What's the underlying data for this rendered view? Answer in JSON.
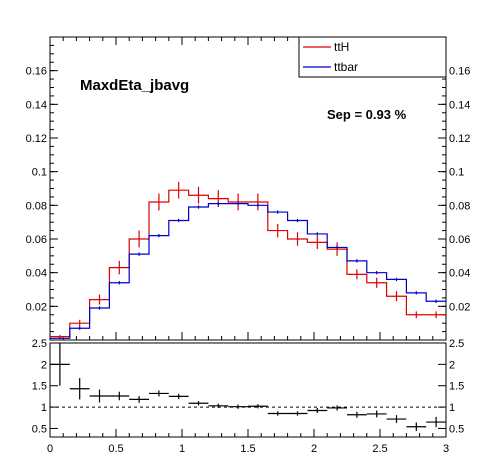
{
  "chart_data": [
    {
      "type": "line",
      "title": "MaxdEta_jbavg",
      "annotation": "Sep = 0.93 %",
      "xlim": [
        0,
        3
      ],
      "ylim": [
        0,
        0.18
      ],
      "x_ticks": [
        0,
        0.5,
        1,
        1.5,
        2,
        2.5,
        3
      ],
      "x_tick_labels": [
        "0",
        "0.5",
        "1",
        "1.5",
        "2",
        "2.5",
        "3"
      ],
      "y_ticks": [
        0.02,
        0.04,
        0.06,
        0.08,
        0.1,
        0.12,
        0.14,
        0.16
      ],
      "y_tick_labels": [
        "0.02",
        "0.04",
        "0.06",
        "0.08",
        "0.1",
        "0.12",
        "0.14",
        "0.16"
      ],
      "legend": {
        "position": "top-right"
      },
      "bin_edges": [
        0,
        0.15,
        0.3,
        0.45,
        0.6,
        0.75,
        0.9,
        1.05,
        1.2,
        1.35,
        1.5,
        1.65,
        1.8,
        1.95,
        2.1,
        2.25,
        2.4,
        2.55,
        2.7,
        2.85,
        3.0
      ],
      "series": [
        {
          "name": "ttH",
          "color": "#dd0000",
          "values": [
            0.002,
            0.01,
            0.024,
            0.043,
            0.06,
            0.082,
            0.089,
            0.086,
            0.084,
            0.082,
            0.082,
            0.065,
            0.06,
            0.058,
            0.054,
            0.039,
            0.034,
            0.026,
            0.015,
            0.015
          ],
          "errors": [
            0.001,
            0.002,
            0.003,
            0.004,
            0.005,
            0.005,
            0.005,
            0.005,
            0.005,
            0.005,
            0.005,
            0.004,
            0.004,
            0.004,
            0.004,
            0.003,
            0.003,
            0.003,
            0.002,
            0.002
          ]
        },
        {
          "name": "ttbar",
          "color": "#0000cc",
          "values": [
            0.001,
            0.007,
            0.019,
            0.034,
            0.051,
            0.062,
            0.071,
            0.079,
            0.081,
            0.081,
            0.08,
            0.076,
            0.071,
            0.063,
            0.055,
            0.047,
            0.04,
            0.036,
            0.028,
            0.023
          ],
          "errors": [
            0.0005,
            0.001,
            0.001,
            0.001,
            0.001,
            0.001,
            0.001,
            0.001,
            0.001,
            0.001,
            0.001,
            0.001,
            0.001,
            0.001,
            0.001,
            0.001,
            0.001,
            0.001,
            0.001,
            0.001
          ]
        }
      ]
    },
    {
      "type": "scatter",
      "xlim": [
        0,
        3
      ],
      "ylim": [
        0.3,
        2.5
      ],
      "x_ticks": [
        0,
        0.5,
        1,
        1.5,
        2,
        2.5,
        3
      ],
      "x_tick_labels": [
        "0",
        "0.5",
        "1",
        "1.5",
        "2",
        "2.5",
        "3"
      ],
      "y_ticks": [
        0.5,
        1,
        1.5,
        2,
        2.5
      ],
      "y_tick_labels": [
        "0.5",
        "1",
        "1.5",
        "2",
        "2.5"
      ],
      "reference_line": 1,
      "x": [
        0.075,
        0.225,
        0.375,
        0.525,
        0.675,
        0.825,
        0.975,
        1.125,
        1.275,
        1.425,
        1.575,
        1.725,
        1.875,
        2.025,
        2.175,
        2.325,
        2.475,
        2.625,
        2.775,
        2.925
      ],
      "x_errors": 0.075,
      "values": [
        2.0,
        1.43,
        1.26,
        1.26,
        1.18,
        1.32,
        1.25,
        1.09,
        1.03,
        1.01,
        1.02,
        0.85,
        0.85,
        0.92,
        0.98,
        0.82,
        0.84,
        0.72,
        0.54,
        0.65
      ],
      "errors": [
        0.5,
        0.25,
        0.15,
        0.1,
        0.08,
        0.07,
        0.06,
        0.05,
        0.05,
        0.05,
        0.05,
        0.05,
        0.05,
        0.06,
        0.06,
        0.07,
        0.08,
        0.09,
        0.1,
        0.12
      ]
    }
  ]
}
